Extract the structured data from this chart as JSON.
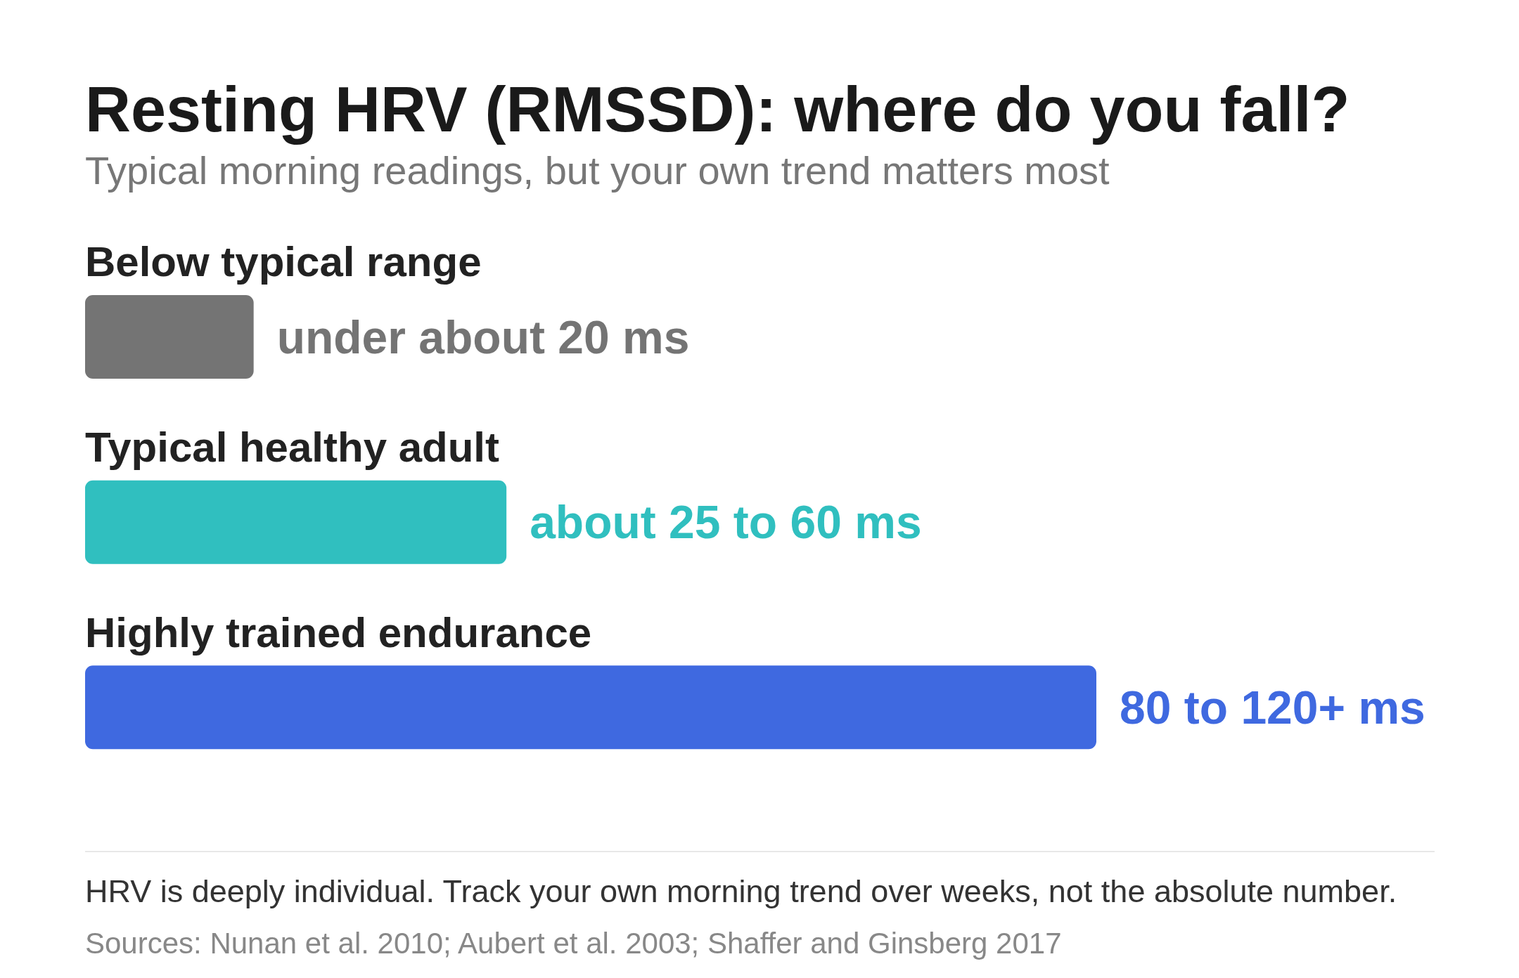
{
  "chart_data": {
    "type": "bar",
    "orientation": "horizontal",
    "title": "Resting HRV (RMSSD): where do you fall?",
    "subtitle": "Typical morning readings, but your own trend matters most",
    "categories": [
      "Below typical range",
      "Typical healthy adult",
      "Highly trained endurance"
    ],
    "values": [
      20,
      50,
      120
    ],
    "colors": [
      "#747474",
      "#30bfbf",
      "#3f69e0"
    ],
    "xlim": [
      0,
      120
    ],
    "tick_labels": "y",
    "value_labels": [
      "under about 20 ms",
      "about 25 to 60 ms",
      "80 to 120+ ms"
    ],
    "annotations": [
      "HRV is deeply individual. Track your own morning trend over weeks, not the absolute number.",
      "Sources: Nunan et al. 2010; Aubert et al. 2003; Shaffer and Ginsberg 2017"
    ]
  }
}
